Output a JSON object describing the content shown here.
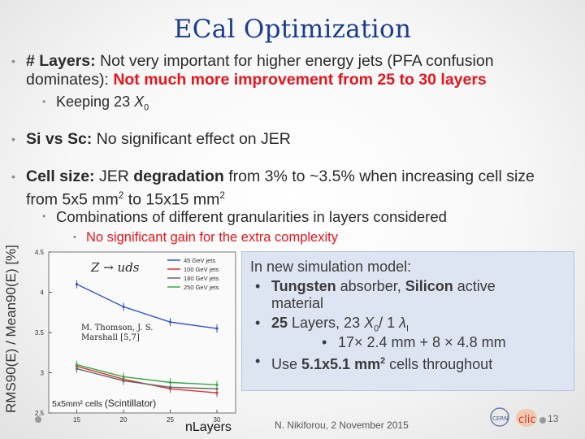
{
  "slide": {
    "title": "ECal Optimization",
    "footer": "N. Nikiforou, 2 November 2015",
    "page_number": "13"
  },
  "bullets": {
    "layers_head": "# Layers:",
    "layers_text": " Not very important for higher energy jets (PFA confusion",
    "layers_text2": "dominates): ",
    "layers_red": "Not much more improvement from 25 to 30 layers",
    "keeping": "Keeping 23 ",
    "keeping_x0": "X",
    "sivssc_head": "Si vs Sc:",
    "sivssc_text": " No significant effect on JER",
    "cell_head": "Cell size:",
    "cell_text1": " JER ",
    "cell_bold": "degradation",
    "cell_text2": " from 3% to ~3.5% when increasing cell size",
    "cell_line2": "from 5x5 mm",
    "cell_line2b": " to 15x15 mm",
    "combos": "Combinations of different granularities in layers considered",
    "nogain": "No significant gain for the extra complexity"
  },
  "info_box": {
    "title": "In new simulation model:",
    "item1_bold1": "Tungsten",
    "item1_text1": " absorber, ",
    "item1_bold2": "Silicon",
    "item1_text2": " active",
    "item1_text3": "material",
    "item2_bold": "25",
    "item2_text": " Layers, 23 ",
    "sub1": "17× 2.4 mm + 8 × 4.8 mm",
    "item3_text": "Use ",
    "item3_bold": "5.1x5.1 mm",
    "item3_text2": " cells throughout"
  },
  "chart_data": {
    "type": "line",
    "title": "",
    "process_label": "Z → uds",
    "xlabel": "nLayers",
    "ylabel": "RMS90(E) / Mean90(E) [%]",
    "ylim": [
      2.5,
      4.5
    ],
    "xlim": [
      12,
      32
    ],
    "yticks": [
      "2.5",
      "3",
      "3.5",
      "4",
      "4.5"
    ],
    "xticks": [
      "15",
      "20",
      "25",
      "30"
    ],
    "x": [
      15,
      20,
      25,
      30
    ],
    "series": [
      {
        "name": "45 GeV jets",
        "color": "#3355cc",
        "values": [
          4.1,
          3.82,
          3.63,
          3.55
        ]
      },
      {
        "name": "100 GeV jets",
        "color": "#dd3333",
        "values": [
          3.08,
          2.92,
          2.8,
          2.75
        ]
      },
      {
        "name": "180 GeV jets",
        "color": "#666666",
        "values": [
          3.05,
          2.9,
          2.82,
          2.8
        ]
      },
      {
        "name": "250 GeV jets",
        "color": "#33aa44",
        "values": [
          3.1,
          2.95,
          2.88,
          2.85
        ]
      }
    ],
    "annotation_ref": "M. Thomson, J. S. Marshall [5,7]",
    "annotation_cells": "5x5mm² cells",
    "annotation_scint": "(Scintillator)"
  },
  "colors": {
    "title": "#1a3d8f",
    "accent_red": "#e8141c",
    "box_bg": "#dde5f3"
  }
}
